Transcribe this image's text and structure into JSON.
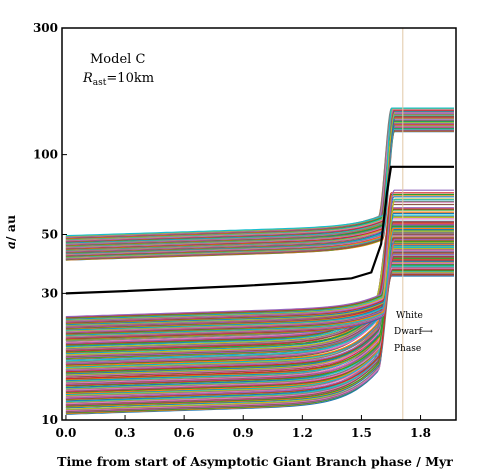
{
  "chart_data": {
    "type": "line",
    "xlabel": "Time from start of Asymptotic Giant Branch phase / Myr",
    "ylabel": "a/ au",
    "ylabel_italic": "a",
    "ylabel_rest": "/ au",
    "yscale": "log",
    "xlim": [
      -0.02,
      1.98
    ],
    "ylim": [
      10,
      300
    ],
    "x_ticks": [
      0.0,
      0.3,
      0.6,
      0.9,
      1.2,
      1.5,
      1.8
    ],
    "x_tick_labels": [
      "0.0",
      "0.3",
      "0.6",
      "0.9",
      "1.2",
      "1.5",
      "1.8"
    ],
    "y_ticks": [
      10,
      30,
      50,
      100,
      300
    ],
    "y_tick_labels": [
      "10",
      "30",
      "50",
      "100",
      "300"
    ],
    "annotations": {
      "model": "Model C",
      "radius_symbol": "R",
      "radius_subscript": "ast",
      "radius_value": "=10km",
      "white_dwarf": [
        "White",
        "Dwarf",
        "Phase"
      ],
      "arrow": "⟶"
    },
    "reference_line": {
      "x": 1.71,
      "color": "#e0c8a8"
    },
    "highlight_series": {
      "name": "",
      "color": "#000000",
      "x": [
        0.0,
        0.3,
        0.6,
        0.9,
        1.2,
        1.45,
        1.55,
        1.6,
        1.63,
        1.65,
        1.97
      ],
      "y": [
        30.0,
        30.6,
        31.3,
        32.0,
        33.0,
        34.2,
        36.0,
        46.0,
        72.0,
        90.0,
        90.0
      ]
    },
    "band_upper": {
      "y_start_min": 40.0,
      "y_start_max": 49.5,
      "y_final_min": 122.0,
      "y_final_max": 150.0,
      "x_jump_start": 1.58,
      "x_jump_end": 1.67,
      "count": 70
    },
    "band_middle_lines": {
      "y_start_min": 20.0,
      "y_start_max": 24.5,
      "y_final_min": 40.0,
      "y_final_max": 73.0,
      "x_jump_start": 1.58,
      "x_jump_end": 1.67,
      "count": 45
    },
    "band_lower": {
      "y_start_min": 10.5,
      "y_start_max": 20.0,
      "y_final_min": 35.0,
      "y_final_max": 56.0,
      "x_jump_start": 1.56,
      "x_jump_end": 1.66,
      "count": 110
    },
    "palette": [
      "#1f77b4",
      "#ff7f0e",
      "#2ca02c",
      "#d62728",
      "#9467bd",
      "#8c564b",
      "#e377c2",
      "#7f7f7f",
      "#bcbd22",
      "#17becf"
    ]
  }
}
